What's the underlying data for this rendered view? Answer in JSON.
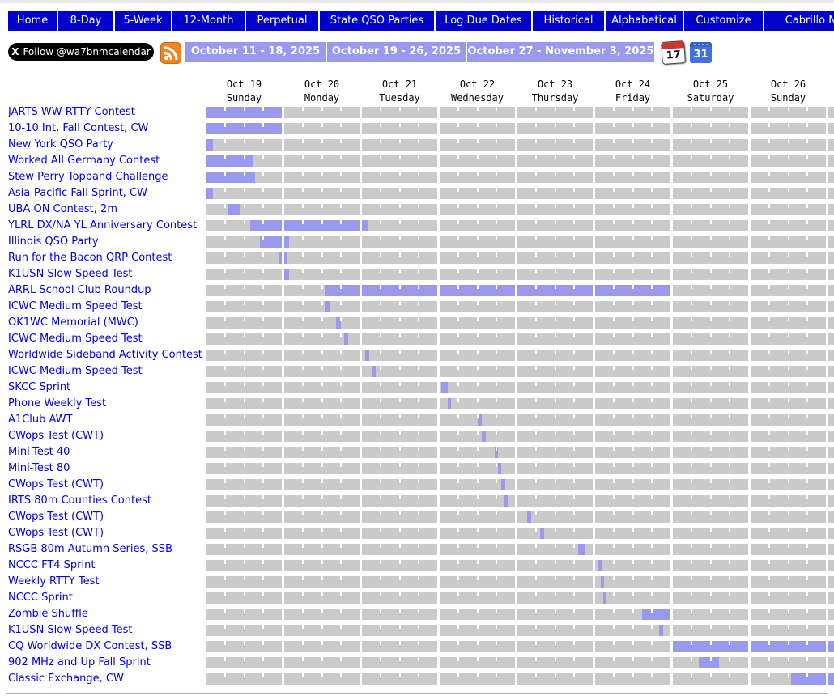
{
  "nav": {
    "items": [
      "Home",
      "8-Day",
      "5-Week",
      "12-Month",
      "Perpetual",
      "State QSO Parties",
      "Log Due Dates",
      "Historical",
      "Alphabetical",
      "Customize",
      "Cabrillo Names"
    ]
  },
  "toolbar": {
    "follow_label": "Follow @wa7bnmcalendar",
    "x_glyph": "X",
    "rss_icon": "rss-feed",
    "week_buttons": [
      "October 11 - 18, 2025",
      "October 19 - 26, 2025",
      "October 27 - November 3, 2025"
    ],
    "calendar_tearoff_label": "17",
    "google_calendar_label": "31"
  },
  "chart_data": {
    "type": "gantt",
    "origin": "Oct 19, 2025 00:00",
    "hours_per_day": 24,
    "days": [
      {
        "date": "Oct 19",
        "weekday": "Sunday"
      },
      {
        "date": "Oct 20",
        "weekday": "Monday"
      },
      {
        "date": "Oct 21",
        "weekday": "Tuesday"
      },
      {
        "date": "Oct 22",
        "weekday": "Wednesday"
      },
      {
        "date": "Oct 23",
        "weekday": "Thursday"
      },
      {
        "date": "Oct 24",
        "weekday": "Friday"
      },
      {
        "date": "Oct 25",
        "weekday": "Saturday"
      },
      {
        "date": "Oct 26",
        "weekday": "Sunday"
      }
    ],
    "colors": {
      "bar_bg": "#CACACA",
      "bar_fill": "#9999EE",
      "nav_blue": "#0000CC",
      "link_blue": "#0000EE"
    },
    "rows": [
      {
        "name": "JARTS WW RTTY Contest",
        "segments": [
          [
            0,
            24
          ]
        ]
      },
      {
        "name": "10-10 Int. Fall Contest, CW",
        "segments": [
          [
            0,
            24
          ]
        ]
      },
      {
        "name": "New York QSO Party",
        "segments": [
          [
            0,
            2
          ]
        ]
      },
      {
        "name": "Worked All Germany Contest",
        "segments": [
          [
            0,
            15
          ]
        ]
      },
      {
        "name": "Stew Perry Topband Challenge",
        "segments": [
          [
            0,
            15.5
          ]
        ]
      },
      {
        "name": "Asia-Pacific Fall Sprint, CW",
        "segments": [
          [
            0,
            2
          ]
        ]
      },
      {
        "name": "UBA ON Contest, 2m",
        "segments": [
          [
            7,
            10.5
          ]
        ]
      },
      {
        "name": "YLRL DX/NA YL Anniversary Contest",
        "segments": [
          [
            14,
            50
          ]
        ]
      },
      {
        "name": "Illinois QSO Party",
        "segments": [
          [
            17,
            25.5
          ]
        ]
      },
      {
        "name": "Run for the Bacon QRP Contest",
        "segments": [
          [
            23,
            25
          ]
        ]
      },
      {
        "name": "K1USN Slow Speed Test",
        "segments": [
          [
            24,
            25.5
          ]
        ]
      },
      {
        "name": "ARRL School Club Roundup",
        "segments": [
          [
            37,
            144
          ]
        ]
      },
      {
        "name": "ICWC Medium Speed Test",
        "segments": [
          [
            37,
            38.5
          ]
        ]
      },
      {
        "name": "OK1WC Memorial (MWC)",
        "segments": [
          [
            40.5,
            42
          ]
        ]
      },
      {
        "name": "ICWC Medium Speed Test",
        "segments": [
          [
            43,
            44.5
          ]
        ]
      },
      {
        "name": "Worldwide Sideband Activity Contest",
        "segments": [
          [
            49,
            50.3
          ]
        ]
      },
      {
        "name": "ICWC Medium Speed Test",
        "segments": [
          [
            51,
            52.5
          ]
        ]
      },
      {
        "name": "SKCC Sprint",
        "segments": [
          [
            72.5,
            74.5
          ]
        ]
      },
      {
        "name": "Phone Weekly Test",
        "segments": [
          [
            74.5,
            75.6
          ]
        ]
      },
      {
        "name": "A1Club AWT",
        "segments": [
          [
            84,
            85.5
          ]
        ]
      },
      {
        "name": "CWops Test (CWT)",
        "segments": [
          [
            85.3,
            86.7
          ]
        ]
      },
      {
        "name": "Mini-Test 40",
        "segments": [
          [
            89.5,
            90.6
          ]
        ]
      },
      {
        "name": "Mini-Test 80",
        "segments": [
          [
            90.6,
            91.6
          ]
        ]
      },
      {
        "name": "CWops Test (CWT)",
        "segments": [
          [
            91.5,
            93
          ]
        ]
      },
      {
        "name": "IRTS 80m Counties Contest",
        "segments": [
          [
            92.4,
            93.7
          ]
        ]
      },
      {
        "name": "CWops Test (CWT)",
        "segments": [
          [
            99,
            100.3
          ]
        ]
      },
      {
        "name": "CWops Test (CWT)",
        "segments": [
          [
            103.2,
            104.5
          ]
        ]
      },
      {
        "name": "RSGB 80m Autumn Series, SSB",
        "segments": [
          [
            115.3,
            117.5
          ]
        ]
      },
      {
        "name": "NCCC FT4 Sprint",
        "segments": [
          [
            121,
            122
          ]
        ]
      },
      {
        "name": "Weekly RTTY Test",
        "segments": [
          [
            121.8,
            122.8
          ]
        ]
      },
      {
        "name": "NCCC Sprint",
        "segments": [
          [
            122.5,
            123.5
          ]
        ]
      },
      {
        "name": "Zombie Shuffle",
        "segments": [
          [
            135,
            144
          ]
        ]
      },
      {
        "name": "K1USN Slow Speed Test",
        "segments": [
          [
            140.5,
            141.8
          ]
        ]
      },
      {
        "name": "CQ Worldwide DX Contest, SSB",
        "segments": [
          [
            144,
            194
          ]
        ]
      },
      {
        "name": "902 MHz and Up Fall Sprint",
        "segments": [
          [
            152.3,
            158.7
          ]
        ]
      },
      {
        "name": "Classic Exchange, CW",
        "segments": [
          [
            181,
            194
          ]
        ]
      }
    ]
  }
}
